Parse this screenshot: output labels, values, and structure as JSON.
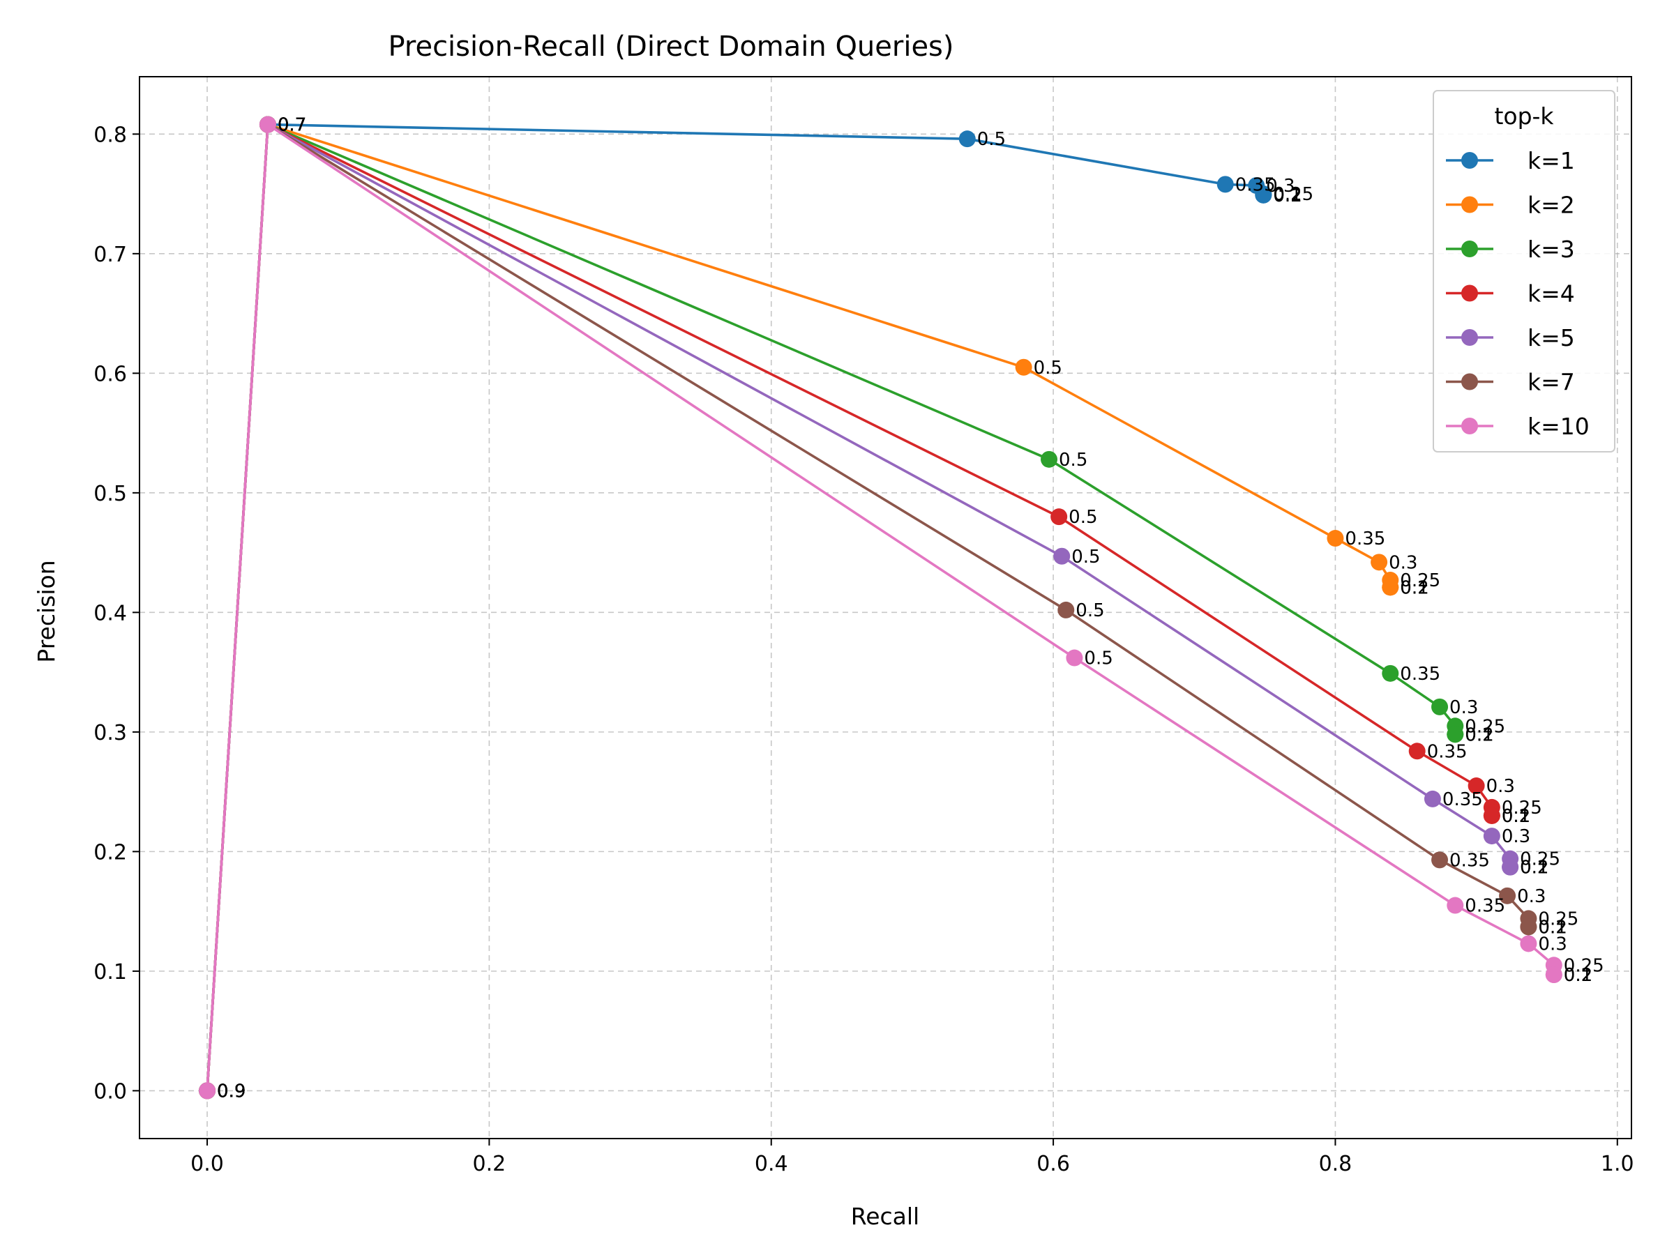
{
  "chart_data": {
    "type": "line",
    "title": "Precision-Recall (Direct Domain Queries)",
    "xlabel": "Recall",
    "ylabel": "Precision",
    "xlim": [
      -0.048,
      1.01
    ],
    "ylim": [
      -0.04,
      0.848
    ],
    "xticks": [
      0.0,
      0.2,
      0.4,
      0.6,
      0.8,
      1.0
    ],
    "xtick_labels": [
      "0.0",
      "0.2",
      "0.4",
      "0.6",
      "0.8",
      "1.0"
    ],
    "yticks": [
      0.0,
      0.1,
      0.2,
      0.3,
      0.4,
      0.5,
      0.6,
      0.7,
      0.8
    ],
    "ytick_labels": [
      "0.0",
      "0.1",
      "0.2",
      "0.3",
      "0.4",
      "0.5",
      "0.6",
      "0.7",
      "0.8"
    ],
    "grid": true,
    "legend": {
      "title": "top-k",
      "placement": "top-right"
    },
    "point_labels": [
      "0.9",
      "0.7",
      "0.5",
      "0.35",
      "0.3",
      "0.25",
      "0.2",
      "0.1"
    ],
    "series": [
      {
        "name": "k=1",
        "color": "#1f77b4",
        "x": [
          0.0,
          0.043,
          0.539,
          0.722,
          0.744,
          0.749,
          0.749,
          0.749
        ],
        "y": [
          0.0,
          0.808,
          0.796,
          0.758,
          0.757,
          0.75,
          0.749,
          0.749
        ]
      },
      {
        "name": "k=2",
        "color": "#ff7f0e",
        "x": [
          0.0,
          0.043,
          0.579,
          0.8,
          0.831,
          0.839,
          0.839,
          0.839
        ],
        "y": [
          0.0,
          0.808,
          0.605,
          0.462,
          0.442,
          0.427,
          0.421,
          0.421
        ]
      },
      {
        "name": "k=3",
        "color": "#2ca02c",
        "x": [
          0.0,
          0.043,
          0.597,
          0.839,
          0.874,
          0.885,
          0.885,
          0.885
        ],
        "y": [
          0.0,
          0.808,
          0.528,
          0.349,
          0.321,
          0.305,
          0.298,
          0.298
        ]
      },
      {
        "name": "k=4",
        "color": "#d62728",
        "x": [
          0.0,
          0.043,
          0.604,
          0.858,
          0.9,
          0.911,
          0.911,
          0.911
        ],
        "y": [
          0.0,
          0.808,
          0.48,
          0.284,
          0.255,
          0.237,
          0.23,
          0.23
        ]
      },
      {
        "name": "k=5",
        "color": "#9467bd",
        "x": [
          0.0,
          0.043,
          0.606,
          0.869,
          0.911,
          0.924,
          0.924,
          0.924
        ],
        "y": [
          0.0,
          0.808,
          0.447,
          0.244,
          0.213,
          0.194,
          0.187,
          0.187
        ]
      },
      {
        "name": "k=7",
        "color": "#8c564b",
        "x": [
          0.0,
          0.043,
          0.609,
          0.874,
          0.922,
          0.937,
          0.937,
          0.937
        ],
        "y": [
          0.0,
          0.808,
          0.402,
          0.193,
          0.163,
          0.144,
          0.137,
          0.137
        ]
      },
      {
        "name": "k=10",
        "color": "#e377c2",
        "x": [
          0.0,
          0.043,
          0.615,
          0.885,
          0.937,
          0.955,
          0.955,
          0.955
        ],
        "y": [
          0.0,
          0.808,
          0.362,
          0.155,
          0.123,
          0.105,
          0.097,
          0.097
        ]
      }
    ]
  }
}
